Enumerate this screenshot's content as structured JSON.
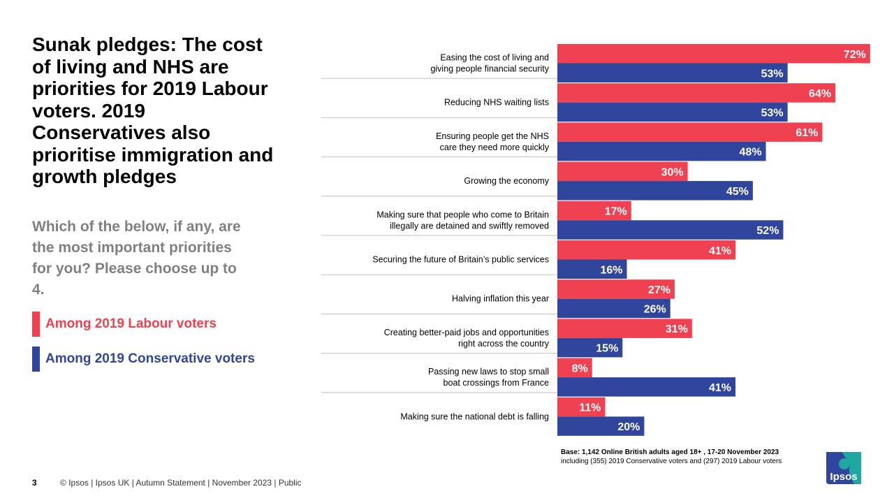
{
  "title": "Sunak pledges: The cost of living and NHS are priorities for 2019 Labour voters. 2019 Conservatives also prioritise immigration and growth pledges",
  "question": "Which of the below, if any, are the most important priorities for you? Please choose up to 4.",
  "legend": [
    {
      "label": "Among 2019 Labour voters",
      "color": "#F04152"
    },
    {
      "label": "Among 2019 Conservative voters",
      "color": "#2F469C"
    }
  ],
  "chart_data": {
    "type": "bar",
    "orientation": "horizontal",
    "categories": [
      [
        "Easing the cost of living and",
        "giving people financial security"
      ],
      [
        "Reducing NHS waiting lists"
      ],
      [
        "Ensuring people get the NHS",
        "care they need more quickly"
      ],
      [
        "Growing the economy"
      ],
      [
        "Making sure that people who come to Britain",
        "illegally are detained and swiftly removed"
      ],
      [
        "Securing the future of Britain’s public services"
      ],
      [
        "Halving inflation this year"
      ],
      [
        "Creating better-paid jobs and opportunities",
        "right across the country"
      ],
      [
        "Passing new laws to stop small",
        "boat crossings from France"
      ],
      [
        "Making sure the national debt is falling"
      ]
    ],
    "series": [
      {
        "name": "Among 2019 Labour voters",
        "color": "#F04152",
        "values": [
          72,
          64,
          61,
          30,
          17,
          41,
          27,
          31,
          8,
          11
        ]
      },
      {
        "name": "Among 2019 Conservative voters",
        "color": "#2F469C",
        "values": [
          53,
          53,
          48,
          45,
          52,
          16,
          26,
          15,
          41,
          20
        ]
      }
    ],
    "value_suffix": "%",
    "xlim": [
      0,
      100
    ],
    "grid": false
  },
  "base": {
    "line1": "Base: 1,142 Online British adults aged 18+ , 17-20 November 2023",
    "line2": "including (355) 2019 Conservative voters and (297) 2019 Labour voters"
  },
  "footer": {
    "page_number": "3",
    "text": "© Ipsos |  Ipsos UK | Autumn Statement | November  2023 | Public"
  },
  "logo": {
    "text": "Ipsos",
    "color": "#2F469C",
    "accent": "#1FA7A1"
  }
}
